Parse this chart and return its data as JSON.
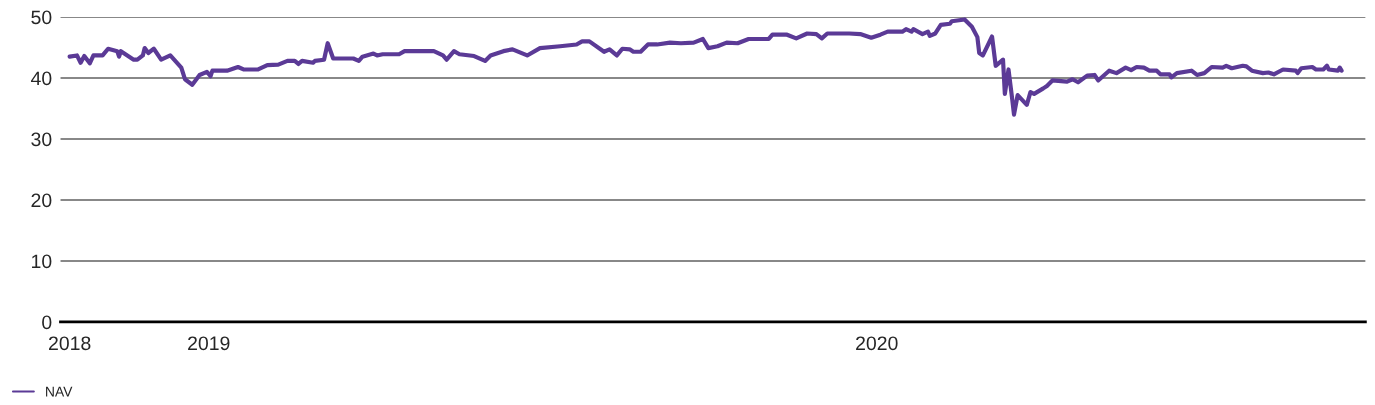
{
  "chart_data": {
    "type": "line",
    "x": [
      "2018-10-17",
      "2018-10-21",
      "2018-10-23",
      "2018-10-25",
      "2018-10-28",
      "2018-10-30",
      "2018-11-04",
      "2018-11-07",
      "2018-11-12",
      "2018-11-13",
      "2018-11-14",
      "2018-11-21",
      "2018-11-23",
      "2018-11-26",
      "2018-11-27",
      "2018-11-29",
      "2018-12-02",
      "2018-12-06",
      "2018-12-11",
      "2018-12-17",
      "2018-12-19",
      "2018-12-23",
      "2018-12-27",
      "2018-12-31",
      "2019-01-02",
      "2019-01-03",
      "2019-01-11",
      "2019-01-17",
      "2019-01-20",
      "2019-01-28",
      "2019-02-02",
      "2019-02-08",
      "2019-02-13",
      "2019-02-17",
      "2019-02-19",
      "2019-02-21",
      "2019-02-27",
      "2019-02-28",
      "2019-03-05",
      "2019-03-07",
      "2019-03-10",
      "2019-03-21",
      "2019-03-24",
      "2019-03-26",
      "2019-04-01",
      "2019-04-03",
      "2019-04-06",
      "2019-04-15",
      "2019-04-18",
      "2019-04-28",
      "2019-05-04",
      "2019-05-09",
      "2019-05-11",
      "2019-05-15",
      "2019-05-18",
      "2019-05-26",
      "2019-06-01",
      "2019-06-04",
      "2019-06-11",
      "2019-06-16",
      "2019-06-24",
      "2019-07-01",
      "2019-07-12",
      "2019-07-21",
      "2019-07-24",
      "2019-07-28",
      "2019-08-05",
      "2019-08-08",
      "2019-08-12",
      "2019-08-15",
      "2019-08-19",
      "2019-08-21",
      "2019-08-25",
      "2019-08-29",
      "2019-09-03",
      "2019-09-10",
      "2019-09-16",
      "2019-09-23",
      "2019-09-28",
      "2019-10-01",
      "2019-10-06",
      "2019-10-11",
      "2019-10-17",
      "2019-10-23",
      "2019-11-03",
      "2019-11-05",
      "2019-11-13",
      "2019-11-18",
      "2019-11-24",
      "2019-11-29",
      "2019-12-02",
      "2019-12-05",
      "2019-12-17",
      "2019-12-23",
      "2019-12-29",
      "2020-01-03",
      "2020-01-07",
      "2020-01-15",
      "2020-01-17",
      "2020-01-20",
      "2020-01-21",
      "2020-01-26",
      "2020-01-29",
      "2020-01-30",
      "2020-02-02",
      "2020-02-05",
      "2020-02-10",
      "2020-02-11",
      "2020-02-18",
      "2020-02-22",
      "2020-02-25",
      "2020-02-26",
      "2020-02-28",
      "2020-03-04",
      "2020-03-06",
      "2020-03-10",
      "2020-03-11",
      "2020-03-13",
      "2020-03-15",
      "2020-03-16",
      "2020-03-18",
      "2020-03-23",
      "2020-03-25",
      "2020-03-27",
      "2020-04-01",
      "2020-04-03",
      "2020-04-06",
      "2020-04-14",
      "2020-04-17",
      "2020-04-20",
      "2020-04-25",
      "2020-04-29",
      "2020-05-01",
      "2020-05-07",
      "2020-05-11",
      "2020-05-16",
      "2020-05-19",
      "2020-05-22",
      "2020-05-26",
      "2020-05-29",
      "2020-06-02",
      "2020-06-04",
      "2020-06-09",
      "2020-06-10",
      "2020-06-13",
      "2020-06-21",
      "2020-06-24",
      "2020-06-28",
      "2020-07-02",
      "2020-07-08",
      "2020-07-10",
      "2020-07-13",
      "2020-07-19",
      "2020-07-21",
      "2020-07-24",
      "2020-07-30",
      "2020-08-02",
      "2020-08-05",
      "2020-08-10",
      "2020-08-17",
      "2020-08-18",
      "2020-08-20",
      "2020-08-26",
      "2020-08-28",
      "2020-09-01",
      "2020-09-03",
      "2020-09-04",
      "2020-09-09",
      "2020-09-10",
      "2020-09-11"
    ],
    "series": [
      {
        "name": "NAV",
        "color": "#5b3a96",
        "values": [
          43.5,
          43.7,
          42.5,
          43.6,
          42.4,
          43.7,
          43.7,
          44.8,
          44.4,
          43.5,
          44.4,
          43.0,
          43.0,
          43.7,
          44.9,
          44.1,
          44.8,
          43.0,
          43.7,
          41.7,
          39.8,
          38.9,
          40.5,
          41.0,
          40.3,
          41.2,
          41.2,
          41.8,
          41.4,
          41.4,
          42.1,
          42.2,
          42.8,
          42.8,
          42.3,
          42.8,
          42.5,
          42.8,
          43.0,
          45.7,
          43.2,
          43.2,
          42.8,
          43.5,
          44.0,
          43.7,
          43.9,
          43.9,
          44.4,
          44.4,
          44.4,
          43.7,
          43.0,
          44.4,
          43.9,
          43.6,
          42.8,
          43.7,
          44.4,
          44.7,
          43.7,
          44.9,
          45.2,
          45.5,
          46.0,
          46.0,
          44.3,
          44.7,
          43.7,
          44.8,
          44.7,
          44.3,
          44.3,
          45.5,
          45.5,
          45.8,
          45.7,
          45.8,
          46.4,
          44.9,
          45.2,
          45.8,
          45.7,
          46.4,
          46.4,
          47.1,
          47.1,
          46.5,
          47.3,
          47.2,
          46.5,
          47.3,
          47.3,
          47.2,
          46.6,
          47.1,
          47.6,
          47.6,
          48.0,
          47.6,
          48.0,
          47.2,
          47.6,
          46.9,
          47.3,
          48.7,
          48.9,
          49.3,
          49.6,
          48.4,
          46.7,
          44.1,
          43.7,
          46.8,
          42.0,
          43.0,
          37.4,
          41.4,
          36.6,
          34.0,
          37.2,
          35.6,
          37.7,
          37.4,
          38.3,
          38.7,
          39.6,
          39.4,
          39.8,
          39.3,
          40.4,
          40.5,
          39.6,
          41.2,
          40.8,
          41.7,
          41.3,
          41.8,
          41.7,
          41.2,
          41.2,
          40.6,
          40.6,
          40.1,
          40.8,
          41.2,
          40.5,
          40.8,
          41.8,
          41.7,
          42.0,
          41.6,
          42.0,
          41.9,
          41.2,
          40.8,
          40.9,
          40.6,
          41.4,
          41.2,
          40.8,
          41.6,
          41.8,
          41.4,
          41.4,
          42.0,
          41.4,
          41.2,
          41.7,
          41.2
        ]
      }
    ],
    "xlim": [
      "2018-10-12",
      "2020-09-24"
    ],
    "xticks": [
      {
        "value": "2018-10-17",
        "label": "2018"
      },
      {
        "value": "2019-01-01",
        "label": "2019"
      },
      {
        "value": "2020-01-01",
        "label": "2020"
      }
    ],
    "ylim": [
      0,
      50
    ],
    "yticks": [
      0,
      10,
      20,
      30,
      40,
      50
    ],
    "grid": "y",
    "legend": "bottom left",
    "marker": "none",
    "line_style": "solid"
  }
}
